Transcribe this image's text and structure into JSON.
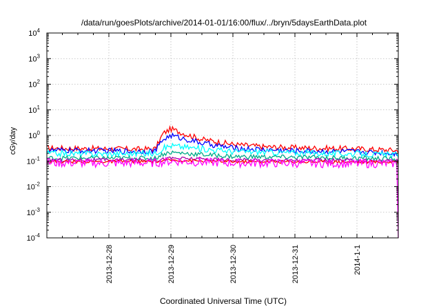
{
  "chart_data": {
    "type": "line",
    "title": "/data/run/goesPlots/archive/2014-01-01/16:00/flux/../bryn/5daysEarthData.plot",
    "xlabel": "Coordinated Universal Time (UTC)",
    "ylabel": "cGy/day",
    "yscale": "log",
    "ylim": [
      0.0001,
      10000
    ],
    "y_ticks": [
      {
        "value": 0.0001,
        "base": "10",
        "exp": "-4"
      },
      {
        "value": 0.001,
        "base": "10",
        "exp": "-3"
      },
      {
        "value": 0.01,
        "base": "10",
        "exp": "-2"
      },
      {
        "value": 0.1,
        "base": "10",
        "exp": "-1"
      },
      {
        "value": 1,
        "base": "10",
        "exp": "0"
      },
      {
        "value": 10,
        "base": "10",
        "exp": "1"
      },
      {
        "value": 100,
        "base": "10",
        "exp": "2"
      },
      {
        "value": 1000,
        "base": "10",
        "exp": "3"
      },
      {
        "value": 10000,
        "base": "10",
        "exp": "4"
      }
    ],
    "x_range": [
      "2013-12-27 00:00",
      "2014-01-01 16:00"
    ],
    "x_ticks": [
      "2013-12-28",
      "2013-12-29",
      "2013-12-30",
      "2013-12-31",
      "2014-1-1"
    ],
    "x_tick_dates": [
      "2013-12-28 00:00",
      "2013-12-29 00:00",
      "2013-12-30 00:00",
      "2013-12-31 00:00",
      "2014-01-01 00:00"
    ],
    "grid": true,
    "series": [
      {
        "color": "#ff0000",
        "x": [
          "2013-12-27 00:00",
          "2013-12-28 00:00",
          "2013-12-28 12:00",
          "2013-12-28 18:00",
          "2013-12-28 21:00",
          "2013-12-29 00:00",
          "2013-12-29 06:00",
          "2013-12-29 12:00",
          "2013-12-30 00:00",
          "2013-12-30 12:00",
          "2013-12-31 00:00",
          "2014-01-01 00:00",
          "2014-01-01 16:00"
        ],
        "y": [
          0.32,
          0.3,
          0.29,
          0.3,
          1.2,
          1.8,
          1.1,
          0.7,
          0.45,
          0.36,
          0.33,
          0.3,
          0.26
        ]
      },
      {
        "color": "#0000ff",
        "x": [
          "2013-12-27 00:00",
          "2013-12-28 00:00",
          "2013-12-28 12:00",
          "2013-12-28 18:00",
          "2013-12-28 21:00",
          "2013-12-29 00:00",
          "2013-12-29 06:00",
          "2013-12-29 12:00",
          "2013-12-30 00:00",
          "2013-12-30 12:00",
          "2013-12-31 00:00",
          "2014-01-01 00:00",
          "2014-01-01 16:00"
        ],
        "y": [
          0.26,
          0.25,
          0.24,
          0.25,
          0.7,
          1.0,
          0.7,
          0.5,
          0.32,
          0.28,
          0.25,
          0.23,
          0.2
        ]
      },
      {
        "color": "#00ffff",
        "x": [
          "2013-12-27 00:00",
          "2013-12-28 00:00",
          "2013-12-28 18:00",
          "2013-12-28 21:00",
          "2013-12-29 00:00",
          "2013-12-29 12:00",
          "2013-12-30 00:00",
          "2013-12-31 00:00",
          "2014-01-01 00:00",
          "2014-01-01 16:00"
        ],
        "y": [
          0.2,
          0.19,
          0.2,
          0.32,
          0.4,
          0.3,
          0.24,
          0.21,
          0.19,
          0.17
        ]
      },
      {
        "color": "#00aa88",
        "x": [
          "2013-12-27 00:00",
          "2013-12-28 00:00",
          "2013-12-28 18:00",
          "2013-12-28 21:00",
          "2013-12-29 00:00",
          "2013-12-29 12:00",
          "2013-12-30 00:00",
          "2013-12-31 00:00",
          "2014-01-01 00:00",
          "2014-01-01 16:00"
        ],
        "y": [
          0.13,
          0.13,
          0.13,
          0.19,
          0.22,
          0.18,
          0.15,
          0.14,
          0.13,
          0.12
        ]
      },
      {
        "color": "#aa00aa",
        "x": [
          "2013-12-27 00:00",
          "2013-12-28 00:00",
          "2013-12-28 18:00",
          "2013-12-29 00:00",
          "2013-12-29 12:00",
          "2013-12-30 00:00",
          "2014-01-01 00:00",
          "2014-01-01 16:00"
        ],
        "y": [
          0.11,
          0.11,
          0.11,
          0.13,
          0.12,
          0.11,
          0.105,
          0.1
        ]
      },
      {
        "color": "#ff0000",
        "x": [
          "2013-12-27 00:00",
          "2013-12-28 00:00",
          "2013-12-28 18:00",
          "2013-12-29 00:00",
          "2013-12-29 12:00",
          "2013-12-30 00:00",
          "2014-01-01 00:00",
          "2014-01-01 16:00"
        ],
        "y": [
          0.095,
          0.095,
          0.095,
          0.11,
          0.1,
          0.095,
          0.092,
          0.09
        ]
      },
      {
        "color": "#ff00ff",
        "x": [
          "2013-12-27 00:00",
          "2013-12-28 00:00",
          "2013-12-28 18:00",
          "2013-12-29 00:00",
          "2013-12-29 12:00",
          "2013-12-30 00:00",
          "2014-01-01 00:00",
          "2014-01-01 15:30",
          "2014-01-01 15:45",
          "2014-01-01 16:00"
        ],
        "y": [
          0.085,
          0.083,
          0.085,
          0.1,
          0.09,
          0.085,
          0.08,
          0.08,
          0.0001,
          0.0001
        ]
      }
    ]
  }
}
